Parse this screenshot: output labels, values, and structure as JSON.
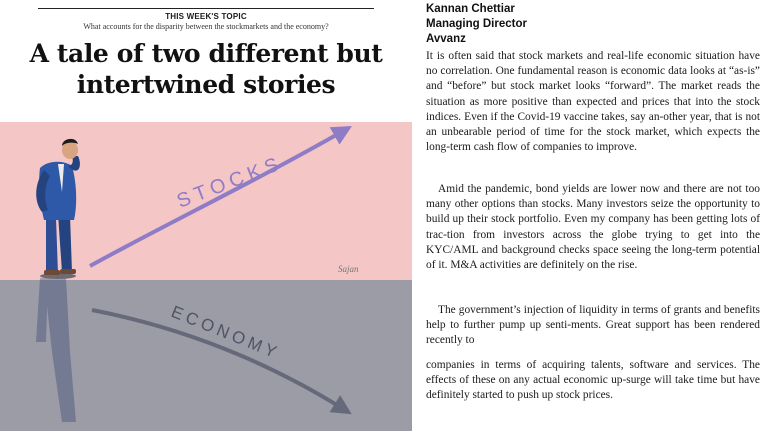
{
  "article": {
    "kicker": "THIS WEEK'S TOPIC",
    "subkicker": "What accounts for the disparity between the stockmarkets and the economy?",
    "headline_line1": "A tale of two different but",
    "headline_line2": "intertwined stories"
  },
  "illustration": {
    "label_stocks": "STOCKS",
    "label_economy": "ECONOMY",
    "signature": "Sajan",
    "colors": {
      "sky": "#f5c6c6",
      "ground": "#9b9ca6",
      "arrow": "#8f7cc6",
      "suit": "#2d59a8"
    }
  },
  "author": {
    "name": "Kannan Chettiar",
    "title": "Managing Director",
    "company": "Avvanz"
  },
  "body": {
    "p1": "It is often said that stock markets and real-life economic situation have no correlation. One fundamental reason is economic data looks at “as-is” and “before” but stock market looks “forward”. The market reads the situation as more positive than expected and prices that into the stock indices. Even if the Covid-19 vaccine takes, say an-other year, that is not an unbearable period of time for the stock market, which expects the long-term cash flow of companies to improve.",
    "p2": "Amid the pandemic, bond yields are lower now and there are not too many other options than stocks. Many investors seize the opportunity to build up their stock portfolio. Even my company has been getting lots of trac-tion from investors across the globe trying to get into the KYC/AML and background checks space seeing the long-term potential of it. M&A activities are definitely on the rise.",
    "p3": "The government’s injection of liquidity in terms of grants and benefits help to further pump up senti-ments. Great support has been rendered recently to",
    "p4": "companies in terms of acquiring talents, software and services. The effects of these on any actual economic up-surge will take time but have definitely started to push up stock prices."
  }
}
